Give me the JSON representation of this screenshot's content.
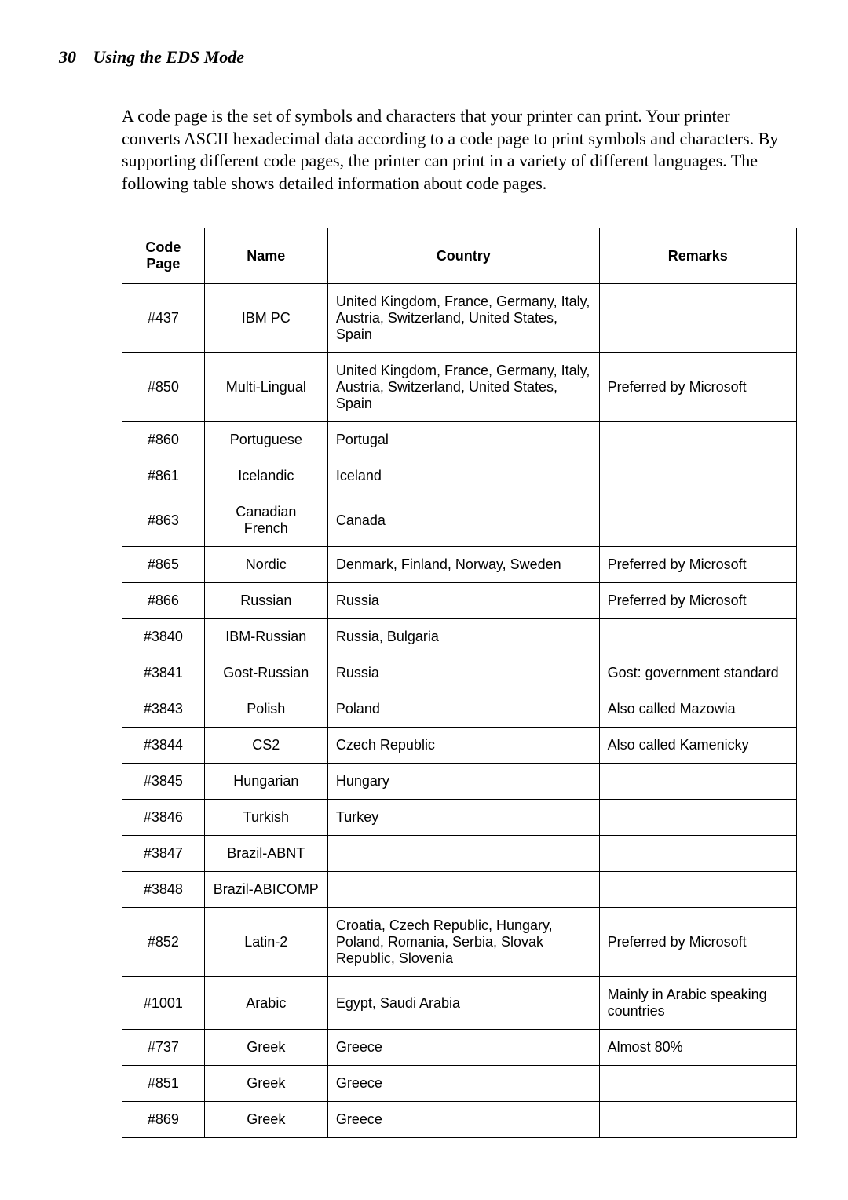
{
  "header": {
    "page_number": "30",
    "title": "Using the EDS Mode"
  },
  "intro_text": "A code page is the set of symbols and characters that your printer can print. Your printer converts ASCII hexadecimal data according to a code page to print symbols and characters. By supporting different code pages, the printer can print in a variety of different languages. The following table shows detailed information about code pages.",
  "table": {
    "columns": [
      "Code Page",
      "Name",
      "Country",
      "Remarks"
    ],
    "rows": [
      {
        "code": "#437",
        "name": "IBM PC",
        "country": "United Kingdom, France, Germany, Italy, Austria, Switzerland, United States, Spain",
        "remarks": ""
      },
      {
        "code": "#850",
        "name": "Multi-Lingual",
        "country": "United Kingdom, France, Germany, Italy, Austria, Switzerland, United States, Spain",
        "remarks": "Preferred by Microsoft"
      },
      {
        "code": "#860",
        "name": "Portuguese",
        "country": "Portugal",
        "remarks": ""
      },
      {
        "code": "#861",
        "name": "Icelandic",
        "country": "Iceland",
        "remarks": ""
      },
      {
        "code": "#863",
        "name": "Canadian French",
        "country": "Canada",
        "remarks": ""
      },
      {
        "code": "#865",
        "name": "Nordic",
        "country": "Denmark, Finland, Norway, Sweden",
        "remarks": "Preferred by Microsoft"
      },
      {
        "code": "#866",
        "name": "Russian",
        "country": "Russia",
        "remarks": "Preferred by Microsoft"
      },
      {
        "code": "#3840",
        "name": "IBM-Russian",
        "country": "Russia, Bulgaria",
        "remarks": ""
      },
      {
        "code": "#3841",
        "name": "Gost-Russian",
        "country": "Russia",
        "remarks": "Gost: government standard"
      },
      {
        "code": "#3843",
        "name": "Polish",
        "country": "Poland",
        "remarks": "Also called  Mazowia"
      },
      {
        "code": "#3844",
        "name": "CS2",
        "country": "Czech Republic",
        "remarks": "Also called  Kamenicky"
      },
      {
        "code": "#3845",
        "name": "Hungarian",
        "country": "Hungary",
        "remarks": ""
      },
      {
        "code": "#3846",
        "name": "Turkish",
        "country": "Turkey",
        "remarks": ""
      },
      {
        "code": "#3847",
        "name": "Brazil-ABNT",
        "country": "",
        "remarks": ""
      },
      {
        "code": "#3848",
        "name": "Brazil-ABICOMP",
        "country": "",
        "remarks": ""
      },
      {
        "code": "#852",
        "name": "Latin-2",
        "country": "Croatia, Czech Republic, Hungary, Poland, Romania, Serbia, Slovak Republic, Slovenia",
        "remarks": "Preferred by Microsoft"
      },
      {
        "code": "#1001",
        "name": "Arabic",
        "country": "Egypt, Saudi Arabia",
        "remarks": "Mainly in Arabic speaking countries"
      },
      {
        "code": "#737",
        "name": "Greek",
        "country": "Greece",
        "remarks": "Almost 80%"
      },
      {
        "code": "#851",
        "name": "Greek",
        "country": "Greece",
        "remarks": ""
      },
      {
        "code": "#869",
        "name": "Greek",
        "country": "Greece",
        "remarks": ""
      }
    ]
  }
}
